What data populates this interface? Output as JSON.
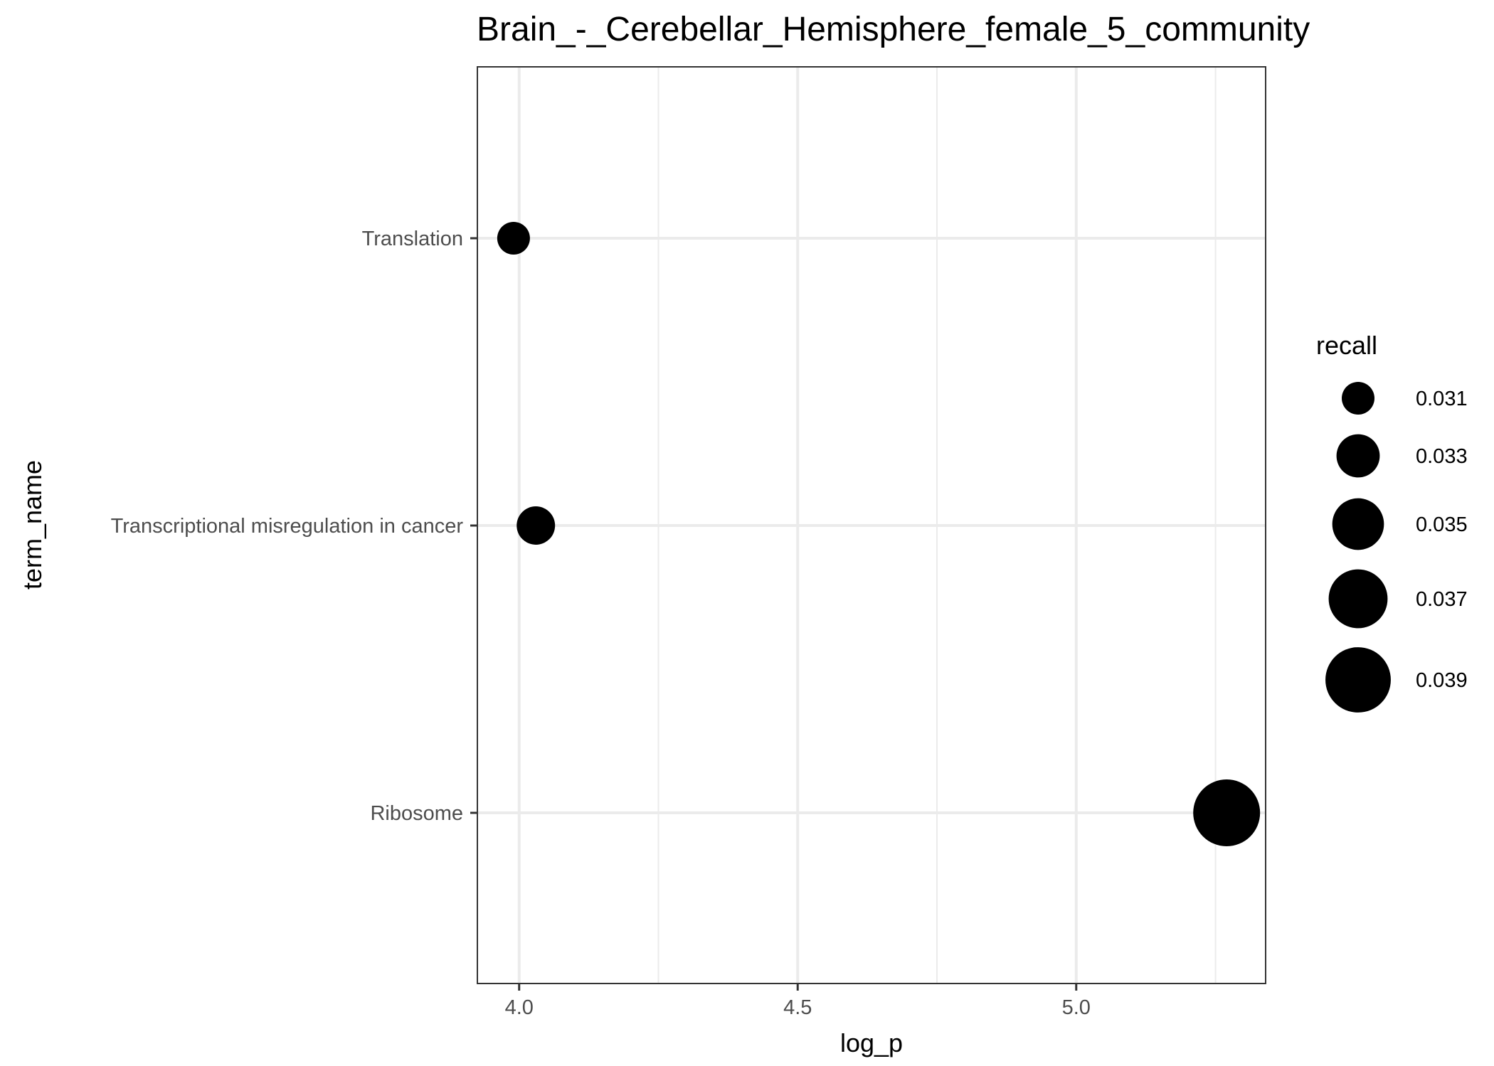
{
  "chart_data": {
    "type": "scatter",
    "title": "Brain_-_Cerebellar_Hemisphere_female_5_community",
    "xlabel": "log_p",
    "ylabel": "term_name",
    "xlim": [
      3.925,
      5.34
    ],
    "x_ticks": [
      "4.0",
      "4.5",
      "5.0"
    ],
    "x_tick_values": [
      4.0,
      4.5,
      5.0
    ],
    "x_minor_values": [
      4.25,
      4.75,
      5.25
    ],
    "categories": [
      "Translation",
      "Transcriptional misregulation in cancer",
      "Ribosome"
    ],
    "points": [
      {
        "term_name": "Translation",
        "log_p": 3.99,
        "recall": 0.031
      },
      {
        "term_name": "Transcriptional misregulation in cancer",
        "log_p": 4.03,
        "recall": 0.032
      },
      {
        "term_name": "Ribosome",
        "log_p": 5.27,
        "recall": 0.0395
      }
    ],
    "size_legend": {
      "title": "recall",
      "values": [
        0.031,
        0.033,
        0.035,
        0.037,
        0.039
      ],
      "labels": [
        "0.031",
        "0.033",
        "0.035",
        "0.037",
        "0.039"
      ]
    },
    "point_color": "#000000",
    "grid": true,
    "legend_position": "right"
  }
}
